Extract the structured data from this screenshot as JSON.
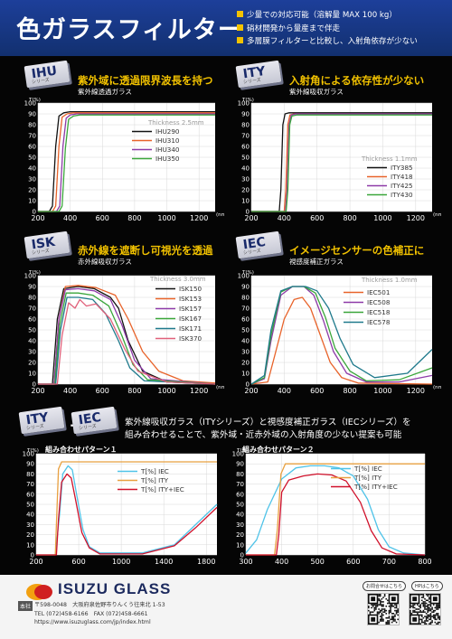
{
  "header": {
    "title": "色ガラスフィルター",
    "bullets": [
      "少量での対応可能（溶解量 MAX 100 kg）",
      "硝材開発から量産まで伴走",
      "多層膜フィルターと比較し、入射角依存が少ない"
    ]
  },
  "panels": {
    "ihu": {
      "tag": "IHU",
      "tag_sub": "シリーズ",
      "headline": "紫外域に透過限界波長を持つ",
      "subtitle": "紫外線透過ガラス",
      "thickness": "Thickness  2.5mm"
    },
    "ity": {
      "tag": "ITY",
      "tag_sub": "シリーズ",
      "headline": "入射角による依存性が少ない",
      "subtitle": "紫外線吸収ガラス",
      "thickness": "Thickness  1.1mm"
    },
    "isk": {
      "tag": "ISK",
      "tag_sub": "シリーズ",
      "headline": "赤外線を遮断し可視光を透過",
      "subtitle": "赤外線吸収ガラス",
      "thickness": "Thickness  3.0mm"
    },
    "iec": {
      "tag": "IEC",
      "tag_sub": "シリーズ",
      "headline": "イメージセンサーの色補正に",
      "subtitle": "視感度補正ガラス",
      "thickness": "Thickness  1.0mm"
    }
  },
  "combo": {
    "tag_left": "ITY",
    "tag_left_sub": "シリーズ",
    "plus": "＋",
    "tag_right": "IEC",
    "tag_right_sub": "シリーズ",
    "line1": "紫外線吸収ガラス（ITYシリーズ）と視感度補正ガラス（IECシリーズ）を",
    "line2": "組み合わせることで、紫外域・近赤外域の入射角度の少ない提案も可能",
    "pattern1_title": "組み合わせパターン１",
    "pattern2_title": "組み合わせパターン２"
  },
  "colors": {
    "background": "#050505",
    "header_blue": "#1d3f9a",
    "accent_yellow": "#f2c200",
    "black_series": "#111111",
    "orange_series": "#e8632a",
    "purple_series": "#8e3aa8",
    "green_series": "#3aa63a",
    "teal_series": "#1f7a8c",
    "pink_series": "#e0607a"
  },
  "footer": {
    "logo": "ISUZU GLASS",
    "hq_label": "本社",
    "address": "〒598-0048　大阪府泉佐野市りんくう往来北 1-53",
    "phone": "TEL (072)458-6166　FAX (072)458-6661",
    "url": "https://www.isuzuglass.com/jp/index.html",
    "qr1_label": "お問合せはこちら",
    "qr2_label": "HPはこちら"
  },
  "chart_data": [
    {
      "id": "ihu",
      "type": "line",
      "ylabel": "T(%)",
      "xlabel": "(nm)",
      "xlim": [
        200,
        1300
      ],
      "ylim": [
        0,
        100
      ],
      "xticks": [
        200,
        400,
        600,
        800,
        1000,
        1200
      ],
      "yticks": [
        0,
        10,
        20,
        30,
        40,
        50,
        60,
        70,
        80,
        90,
        100
      ],
      "series": [
        {
          "name": "IHU290",
          "color": "#111111",
          "x": [
            200,
            270,
            290,
            310,
            330,
            360,
            400,
            1300
          ],
          "y": [
            0,
            0,
            5,
            60,
            88,
            91,
            92,
            92
          ]
        },
        {
          "name": "IHU310",
          "color": "#e8632a",
          "x": [
            200,
            290,
            310,
            330,
            350,
            380,
            420,
            1300
          ],
          "y": [
            0,
            0,
            5,
            60,
            87,
            90,
            91,
            91
          ]
        },
        {
          "name": "IHU340",
          "color": "#8e3aa8",
          "x": [
            200,
            315,
            335,
            355,
            375,
            400,
            440,
            1300
          ],
          "y": [
            0,
            0,
            5,
            60,
            86,
            89,
            90,
            90
          ]
        },
        {
          "name": "IHU350",
          "color": "#3aa63a",
          "x": [
            200,
            330,
            350,
            370,
            390,
            420,
            460,
            1300
          ],
          "y": [
            0,
            0,
            5,
            58,
            85,
            88,
            89,
            89
          ]
        }
      ]
    },
    {
      "id": "ity",
      "type": "line",
      "ylabel": "T(%)",
      "xlabel": "(nm)",
      "xlim": [
        200,
        1300
      ],
      "ylim": [
        0,
        100
      ],
      "xticks": [
        200,
        400,
        600,
        800,
        1000,
        1200
      ],
      "yticks": [
        0,
        10,
        20,
        30,
        40,
        50,
        60,
        70,
        80,
        90,
        100
      ],
      "series": [
        {
          "name": "ITY385",
          "color": "#111111",
          "x": [
            200,
            370,
            380,
            392,
            405,
            430,
            1300
          ],
          "y": [
            0,
            0,
            20,
            80,
            90,
            91,
            91
          ]
        },
        {
          "name": "ITY418",
          "color": "#e8632a",
          "x": [
            200,
            400,
            410,
            422,
            435,
            460,
            1300
          ],
          "y": [
            0,
            0,
            20,
            80,
            89,
            90,
            90
          ]
        },
        {
          "name": "ITY425",
          "color": "#8e3aa8",
          "x": [
            200,
            408,
            418,
            430,
            443,
            470,
            1300
          ],
          "y": [
            0,
            0,
            20,
            80,
            89,
            90,
            90
          ]
        },
        {
          "name": "ITY430",
          "color": "#3aa63a",
          "x": [
            200,
            412,
            422,
            434,
            447,
            475,
            1300
          ],
          "y": [
            0,
            0,
            20,
            80,
            88,
            89,
            89
          ]
        }
      ]
    },
    {
      "id": "isk",
      "type": "line",
      "ylabel": "T(%)",
      "xlabel": "(nm)",
      "xlim": [
        200,
        1300
      ],
      "ylim": [
        0,
        100
      ],
      "xticks": [
        200,
        400,
        600,
        800,
        1000,
        1200
      ],
      "yticks": [
        0,
        10,
        20,
        30,
        40,
        50,
        60,
        70,
        80,
        90,
        100
      ],
      "series": [
        {
          "name": "ISK150",
          "color": "#111111",
          "x": [
            200,
            290,
            320,
            360,
            450,
            550,
            650,
            700,
            760,
            850,
            1000,
            1300
          ],
          "y": [
            0,
            0,
            60,
            88,
            90,
            88,
            80,
            70,
            40,
            12,
            2,
            0
          ]
        },
        {
          "name": "ISK153",
          "color": "#e8632a",
          "x": [
            200,
            300,
            330,
            370,
            450,
            560,
            680,
            760,
            850,
            950,
            1100,
            1300
          ],
          "y": [
            0,
            0,
            60,
            90,
            91,
            89,
            82,
            60,
            30,
            12,
            3,
            1
          ]
        },
        {
          "name": "ISK157",
          "color": "#8e3aa8",
          "x": [
            200,
            300,
            330,
            370,
            450,
            550,
            650,
            720,
            800,
            900,
            1300
          ],
          "y": [
            0,
            0,
            60,
            87,
            88,
            86,
            78,
            55,
            22,
            5,
            0
          ]
        },
        {
          "name": "ISK167",
          "color": "#3aa63a",
          "x": [
            200,
            305,
            335,
            375,
            450,
            540,
            640,
            720,
            790,
            880,
            1300
          ],
          "y": [
            0,
            0,
            55,
            84,
            84,
            82,
            72,
            45,
            18,
            4,
            0
          ]
        },
        {
          "name": "ISK171",
          "color": "#1f7a8c",
          "x": [
            200,
            310,
            340,
            380,
            450,
            540,
            620,
            700,
            770,
            860,
            1300
          ],
          "y": [
            0,
            0,
            50,
            80,
            80,
            78,
            65,
            40,
            15,
            3,
            0
          ]
        },
        {
          "name": "ISK370",
          "color": "#e0607a",
          "x": [
            200,
            320,
            350,
            390,
            430,
            460,
            500,
            560,
            650,
            740,
            820,
            1000,
            1300
          ],
          "y": [
            0,
            0,
            45,
            75,
            70,
            78,
            72,
            74,
            60,
            32,
            12,
            2,
            0
          ]
        }
      ]
    },
    {
      "id": "iec",
      "type": "line",
      "ylabel": "T(%)",
      "xlabel": "(nm)",
      "xlim": [
        200,
        1300
      ],
      "ylim": [
        0,
        100
      ],
      "xticks": [
        200,
        400,
        600,
        800,
        1000,
        1200
      ],
      "yticks": [
        0,
        10,
        20,
        30,
        40,
        50,
        60,
        70,
        80,
        90,
        100
      ],
      "series": [
        {
          "name": "IEC501",
          "color": "#e8632a",
          "x": [
            200,
            300,
            340,
            400,
            460,
            510,
            560,
            620,
            680,
            750,
            850,
            1300
          ],
          "y": [
            0,
            2,
            25,
            60,
            78,
            80,
            70,
            45,
            20,
            6,
            1,
            0
          ]
        },
        {
          "name": "IEC508",
          "color": "#8e3aa8",
          "x": [
            200,
            280,
            320,
            380,
            450,
            520,
            580,
            640,
            700,
            780,
            900,
            1100,
            1300
          ],
          "y": [
            0,
            5,
            40,
            82,
            90,
            90,
            82,
            58,
            30,
            10,
            2,
            2,
            8
          ]
        },
        {
          "name": "IEC518",
          "color": "#3aa63a",
          "x": [
            200,
            280,
            320,
            380,
            450,
            520,
            590,
            650,
            710,
            800,
            900,
            1100,
            1300
          ],
          "y": [
            0,
            6,
            45,
            85,
            90,
            90,
            84,
            62,
            33,
            12,
            3,
            4,
            15
          ]
        },
        {
          "name": "IEC578",
          "color": "#1f7a8c",
          "x": [
            200,
            280,
            320,
            380,
            450,
            530,
            600,
            670,
            740,
            820,
            950,
            1150,
            1300
          ],
          "y": [
            0,
            8,
            50,
            86,
            90,
            90,
            86,
            70,
            42,
            18,
            6,
            10,
            32
          ]
        }
      ]
    },
    {
      "id": "combo1",
      "type": "line",
      "ylabel": "T(%)",
      "xlabel": "",
      "xlim": [
        200,
        1900
      ],
      "ylim": [
        0,
        100
      ],
      "xticks": [
        200,
        600,
        1000,
        1400,
        1800
      ],
      "yticks": [
        0,
        10,
        20,
        30,
        40,
        50,
        60,
        70,
        80,
        90,
        100
      ],
      "series": [
        {
          "name": "T[%] IEC",
          "color": "#4fc3e8",
          "x": [
            200,
            380,
            420,
            450,
            500,
            540,
            580,
            640,
            700,
            800,
            1200,
            1500,
            1700,
            1900
          ],
          "y": [
            0,
            0,
            40,
            80,
            88,
            84,
            60,
            25,
            8,
            2,
            2,
            10,
            30,
            50
          ]
        },
        {
          "name": "T[%] ITY",
          "color": "#e8a040",
          "x": [
            200,
            380,
            390,
            410,
            440,
            1900
          ],
          "y": [
            0,
            0,
            30,
            85,
            92,
            92
          ]
        },
        {
          "name": "T[%] ITY+IEC",
          "color": "#d0102a",
          "x": [
            200,
            390,
            410,
            440,
            490,
            530,
            570,
            630,
            700,
            800,
            1200,
            1500,
            1700,
            1900
          ],
          "y": [
            0,
            0,
            35,
            72,
            80,
            76,
            55,
            22,
            7,
            1,
            1,
            9,
            27,
            47
          ]
        }
      ]
    },
    {
      "id": "combo2",
      "type": "line",
      "ylabel": "T(%)",
      "xlabel": "",
      "xlim": [
        300,
        800
      ],
      "ylim": [
        0,
        100
      ],
      "xticks": [
        300,
        400,
        500,
        600,
        700,
        800
      ],
      "yticks": [
        0,
        10,
        20,
        30,
        40,
        50,
        60,
        70,
        80,
        90,
        100
      ],
      "series": [
        {
          "name": "T[%] IEC",
          "color": "#4fc3e8",
          "x": [
            300,
            330,
            360,
            400,
            440,
            480,
            520,
            560,
            600,
            640,
            670,
            700,
            740,
            800
          ],
          "y": [
            2,
            15,
            45,
            75,
            86,
            88,
            88,
            86,
            78,
            55,
            25,
            8,
            2,
            0
          ]
        },
        {
          "name": "T[%] ITY",
          "color": "#e8a040",
          "x": [
            300,
            380,
            388,
            398,
            410,
            800
          ],
          "y": [
            0,
            0,
            25,
            80,
            90,
            90
          ]
        },
        {
          "name": "T[%] ITY+IEC",
          "color": "#d0102a",
          "x": [
            300,
            385,
            392,
            400,
            420,
            460,
            500,
            540,
            580,
            620,
            650,
            680,
            720,
            800
          ],
          "y": [
            0,
            0,
            20,
            62,
            74,
            78,
            80,
            79,
            73,
            52,
            24,
            7,
            1,
            0
          ]
        }
      ]
    }
  ]
}
